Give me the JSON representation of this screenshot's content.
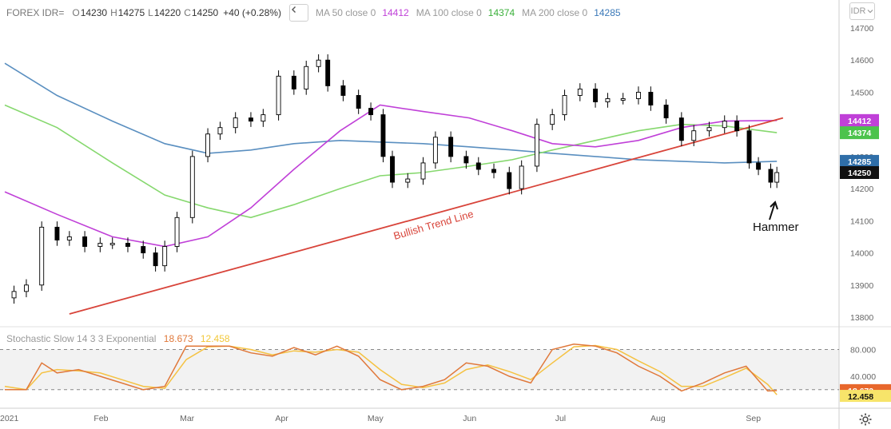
{
  "header": {
    "symbol": "FOREX IDR=",
    "open_label": "O",
    "open": "14230",
    "high_label": "H",
    "high": "14275",
    "low_label": "L",
    "low": "14220",
    "close_label": "C",
    "close": "14250",
    "change": "+40 (+0.28%)",
    "ma50_label": "MA 50 close 0",
    "ma50_value": "14412",
    "ma100_label": "MA 100 close 0",
    "ma100_value": "14374",
    "ma200_label": "MA 200 close 0",
    "ma200_value": "14285",
    "currency_button": "IDR"
  },
  "colors": {
    "ma50": "#c040d8",
    "ma100": "#86d86e",
    "ma200": "#5a8fc0",
    "trend": "#d8443a",
    "stoch_k": "#e0783a",
    "stoch_d": "#f5c242",
    "ma50_text": "#c040d8",
    "ma100_text": "#3bb03b",
    "ma200_text": "#3a78b8"
  },
  "annotations": {
    "trend_line": "Bullish Trend Line",
    "hammer": "Hammer"
  },
  "stochastic": {
    "label": "Stochastic Slow 14 3 3 Exponential",
    "k_value": "18.673",
    "d_value": "12.458",
    "ticks": [
      "80.000",
      "40.000"
    ]
  },
  "chart_data": {
    "type": "candlestick",
    "x_ticks": [
      "2021",
      "Feb",
      "Mar",
      "Apr",
      "May",
      "Jun",
      "Jul",
      "Aug",
      "Sep"
    ],
    "y_ticks": [
      14700,
      14600,
      14500,
      14400,
      14300,
      14200,
      14100,
      14000,
      13900,
      13800
    ],
    "ylim": [
      13790,
      14740
    ],
    "price_tags": [
      {
        "label": "14412",
        "value": 14412,
        "series": "ma50"
      },
      {
        "label": "14374",
        "value": 14374,
        "series": "ma100"
      },
      {
        "label": "14285",
        "value": 14285,
        "series": "ma200"
      },
      {
        "label": "14250",
        "value": 14250,
        "series": "close"
      }
    ],
    "close_series": [
      [
        "2021-01-04",
        13880
      ],
      [
        "2021-01-08",
        13900
      ],
      [
        "2021-01-13",
        14080
      ],
      [
        "2021-01-18",
        14040
      ],
      [
        "2021-01-22",
        14050
      ],
      [
        "2021-01-27",
        14020
      ],
      [
        "2021-02-01",
        14030
      ],
      [
        "2021-02-05",
        14030
      ],
      [
        "2021-02-10",
        14020
      ],
      [
        "2021-02-15",
        14000
      ],
      [
        "2021-02-19",
        13960
      ],
      [
        "2021-02-22",
        14020
      ],
      [
        "2021-02-26",
        14110
      ],
      [
        "2021-03-03",
        14300
      ],
      [
        "2021-03-08",
        14370
      ],
      [
        "2021-03-12",
        14390
      ],
      [
        "2021-03-17",
        14420
      ],
      [
        "2021-03-22",
        14410
      ],
      [
        "2021-03-26",
        14430
      ],
      [
        "2021-03-31",
        14550
      ],
      [
        "2021-04-05",
        14510
      ],
      [
        "2021-04-09",
        14580
      ],
      [
        "2021-04-13",
        14600
      ],
      [
        "2021-04-16",
        14520
      ],
      [
        "2021-04-21",
        14490
      ],
      [
        "2021-04-26",
        14450
      ],
      [
        "2021-04-30",
        14430
      ],
      [
        "2021-05-04",
        14300
      ],
      [
        "2021-05-07",
        14220
      ],
      [
        "2021-05-12",
        14230
      ],
      [
        "2021-05-17",
        14280
      ],
      [
        "2021-05-21",
        14360
      ],
      [
        "2021-05-26",
        14300
      ],
      [
        "2021-05-31",
        14280
      ],
      [
        "2021-06-04",
        14260
      ],
      [
        "2021-06-09",
        14250
      ],
      [
        "2021-06-14",
        14200
      ],
      [
        "2021-06-18",
        14270
      ],
      [
        "2021-06-23",
        14400
      ],
      [
        "2021-06-28",
        14430
      ],
      [
        "2021-07-02",
        14490
      ],
      [
        "2021-07-07",
        14510
      ],
      [
        "2021-07-12",
        14470
      ],
      [
        "2021-07-16",
        14480
      ],
      [
        "2021-07-21",
        14480
      ],
      [
        "2021-07-26",
        14500
      ],
      [
        "2021-07-30",
        14460
      ],
      [
        "2021-08-04",
        14420
      ],
      [
        "2021-08-09",
        14350
      ],
      [
        "2021-08-13",
        14380
      ],
      [
        "2021-08-18",
        14390
      ],
      [
        "2021-08-23",
        14410
      ],
      [
        "2021-08-27",
        14380
      ],
      [
        "2021-08-31",
        14280
      ],
      [
        "2021-09-03",
        14260
      ],
      [
        "2021-09-07",
        14220
      ],
      [
        "2021-09-09",
        14250
      ]
    ],
    "ma50": [
      [
        "2021-01-01",
        14190
      ],
      [
        "2021-01-18",
        14120
      ],
      [
        "2021-02-05",
        14050
      ],
      [
        "2021-02-22",
        14020
      ],
      [
        "2021-03-08",
        14050
      ],
      [
        "2021-03-22",
        14140
      ],
      [
        "2021-04-05",
        14260
      ],
      [
        "2021-04-20",
        14380
      ],
      [
        "2021-05-03",
        14460
      ],
      [
        "2021-05-17",
        14440
      ],
      [
        "2021-06-01",
        14420
      ],
      [
        "2021-06-15",
        14380
      ],
      [
        "2021-06-28",
        14340
      ],
      [
        "2021-07-12",
        14330
      ],
      [
        "2021-07-26",
        14350
      ],
      [
        "2021-08-09",
        14390
      ],
      [
        "2021-08-23",
        14410
      ],
      [
        "2021-09-09",
        14412
      ]
    ],
    "ma100": [
      [
        "2021-01-01",
        14460
      ],
      [
        "2021-01-18",
        14390
      ],
      [
        "2021-02-05",
        14280
      ],
      [
        "2021-02-22",
        14180
      ],
      [
        "2021-03-08",
        14140
      ],
      [
        "2021-03-22",
        14110
      ],
      [
        "2021-04-05",
        14150
      ],
      [
        "2021-04-20",
        14200
      ],
      [
        "2021-05-03",
        14240
      ],
      [
        "2021-05-17",
        14250
      ],
      [
        "2021-06-01",
        14270
      ],
      [
        "2021-06-15",
        14290
      ],
      [
        "2021-06-28",
        14320
      ],
      [
        "2021-07-12",
        14350
      ],
      [
        "2021-07-26",
        14380
      ],
      [
        "2021-08-09",
        14400
      ],
      [
        "2021-08-23",
        14395
      ],
      [
        "2021-09-09",
        14374
      ]
    ],
    "ma200": [
      [
        "2021-01-01",
        14590
      ],
      [
        "2021-01-18",
        14490
      ],
      [
        "2021-02-05",
        14410
      ],
      [
        "2021-02-22",
        14340
      ],
      [
        "2021-03-08",
        14310
      ],
      [
        "2021-03-22",
        14320
      ],
      [
        "2021-04-05",
        14340
      ],
      [
        "2021-04-20",
        14350
      ],
      [
        "2021-05-03",
        14345
      ],
      [
        "2021-05-17",
        14340
      ],
      [
        "2021-06-01",
        14330
      ],
      [
        "2021-06-15",
        14320
      ],
      [
        "2021-06-28",
        14310
      ],
      [
        "2021-07-12",
        14300
      ],
      [
        "2021-07-26",
        14290
      ],
      [
        "2021-08-09",
        14285
      ],
      [
        "2021-08-23",
        14280
      ],
      [
        "2021-09-09",
        14285
      ]
    ],
    "trend_line": [
      [
        "2021-01-22",
        13810
      ],
      [
        "2021-09-11",
        14420
      ]
    ],
    "stoch_k": [
      [
        "2021-01-01",
        20
      ],
      [
        "2021-01-08",
        20
      ],
      [
        "2021-01-13",
        60
      ],
      [
        "2021-01-18",
        45
      ],
      [
        "2021-01-25",
        50
      ],
      [
        "2021-02-01",
        40
      ],
      [
        "2021-02-08",
        30
      ],
      [
        "2021-02-15",
        20
      ],
      [
        "2021-02-22",
        25
      ],
      [
        "2021-03-01",
        85
      ],
      [
        "2021-03-08",
        85
      ],
      [
        "2021-03-15",
        85
      ],
      [
        "2021-03-22",
        75
      ],
      [
        "2021-03-29",
        70
      ],
      [
        "2021-04-05",
        83
      ],
      [
        "2021-04-12",
        72
      ],
      [
        "2021-04-19",
        85
      ],
      [
        "2021-04-26",
        70
      ],
      [
        "2021-05-03",
        35
      ],
      [
        "2021-05-10",
        20
      ],
      [
        "2021-05-17",
        25
      ],
      [
        "2021-05-24",
        35
      ],
      [
        "2021-05-31",
        60
      ],
      [
        "2021-06-07",
        55
      ],
      [
        "2021-06-14",
        40
      ],
      [
        "2021-06-21",
        30
      ],
      [
        "2021-06-28",
        80
      ],
      [
        "2021-07-05",
        88
      ],
      [
        "2021-07-12",
        85
      ],
      [
        "2021-07-19",
        75
      ],
      [
        "2021-07-26",
        55
      ],
      [
        "2021-08-02",
        40
      ],
      [
        "2021-08-09",
        18
      ],
      [
        "2021-08-16",
        30
      ],
      [
        "2021-08-23",
        45
      ],
      [
        "2021-08-30",
        55
      ],
      [
        "2021-09-06",
        18
      ],
      [
        "2021-09-09",
        18.673
      ]
    ],
    "stoch_d": [
      [
        "2021-01-01",
        25
      ],
      [
        "2021-01-08",
        20
      ],
      [
        "2021-01-13",
        45
      ],
      [
        "2021-01-18",
        50
      ],
      [
        "2021-01-25",
        48
      ],
      [
        "2021-02-01",
        45
      ],
      [
        "2021-02-08",
        35
      ],
      [
        "2021-02-15",
        25
      ],
      [
        "2021-02-22",
        22
      ],
      [
        "2021-03-01",
        65
      ],
      [
        "2021-03-08",
        84
      ],
      [
        "2021-03-15",
        85
      ],
      [
        "2021-03-22",
        80
      ],
      [
        "2021-03-29",
        72
      ],
      [
        "2021-04-05",
        78
      ],
      [
        "2021-04-12",
        76
      ],
      [
        "2021-04-19",
        80
      ],
      [
        "2021-04-26",
        76
      ],
      [
        "2021-05-03",
        50
      ],
      [
        "2021-05-10",
        28
      ],
      [
        "2021-05-17",
        23
      ],
      [
        "2021-05-24",
        30
      ],
      [
        "2021-05-31",
        50
      ],
      [
        "2021-06-07",
        57
      ],
      [
        "2021-06-14",
        47
      ],
      [
        "2021-06-21",
        35
      ],
      [
        "2021-06-28",
        60
      ],
      [
        "2021-07-05",
        84
      ],
      [
        "2021-07-12",
        86
      ],
      [
        "2021-07-19",
        80
      ],
      [
        "2021-07-26",
        63
      ],
      [
        "2021-08-02",
        47
      ],
      [
        "2021-08-09",
        25
      ],
      [
        "2021-08-16",
        25
      ],
      [
        "2021-08-23",
        38
      ],
      [
        "2021-08-30",
        52
      ],
      [
        "2021-09-06",
        28
      ],
      [
        "2021-09-09",
        12.458
      ]
    ],
    "stoch_ylim": [
      0,
      100
    ]
  }
}
